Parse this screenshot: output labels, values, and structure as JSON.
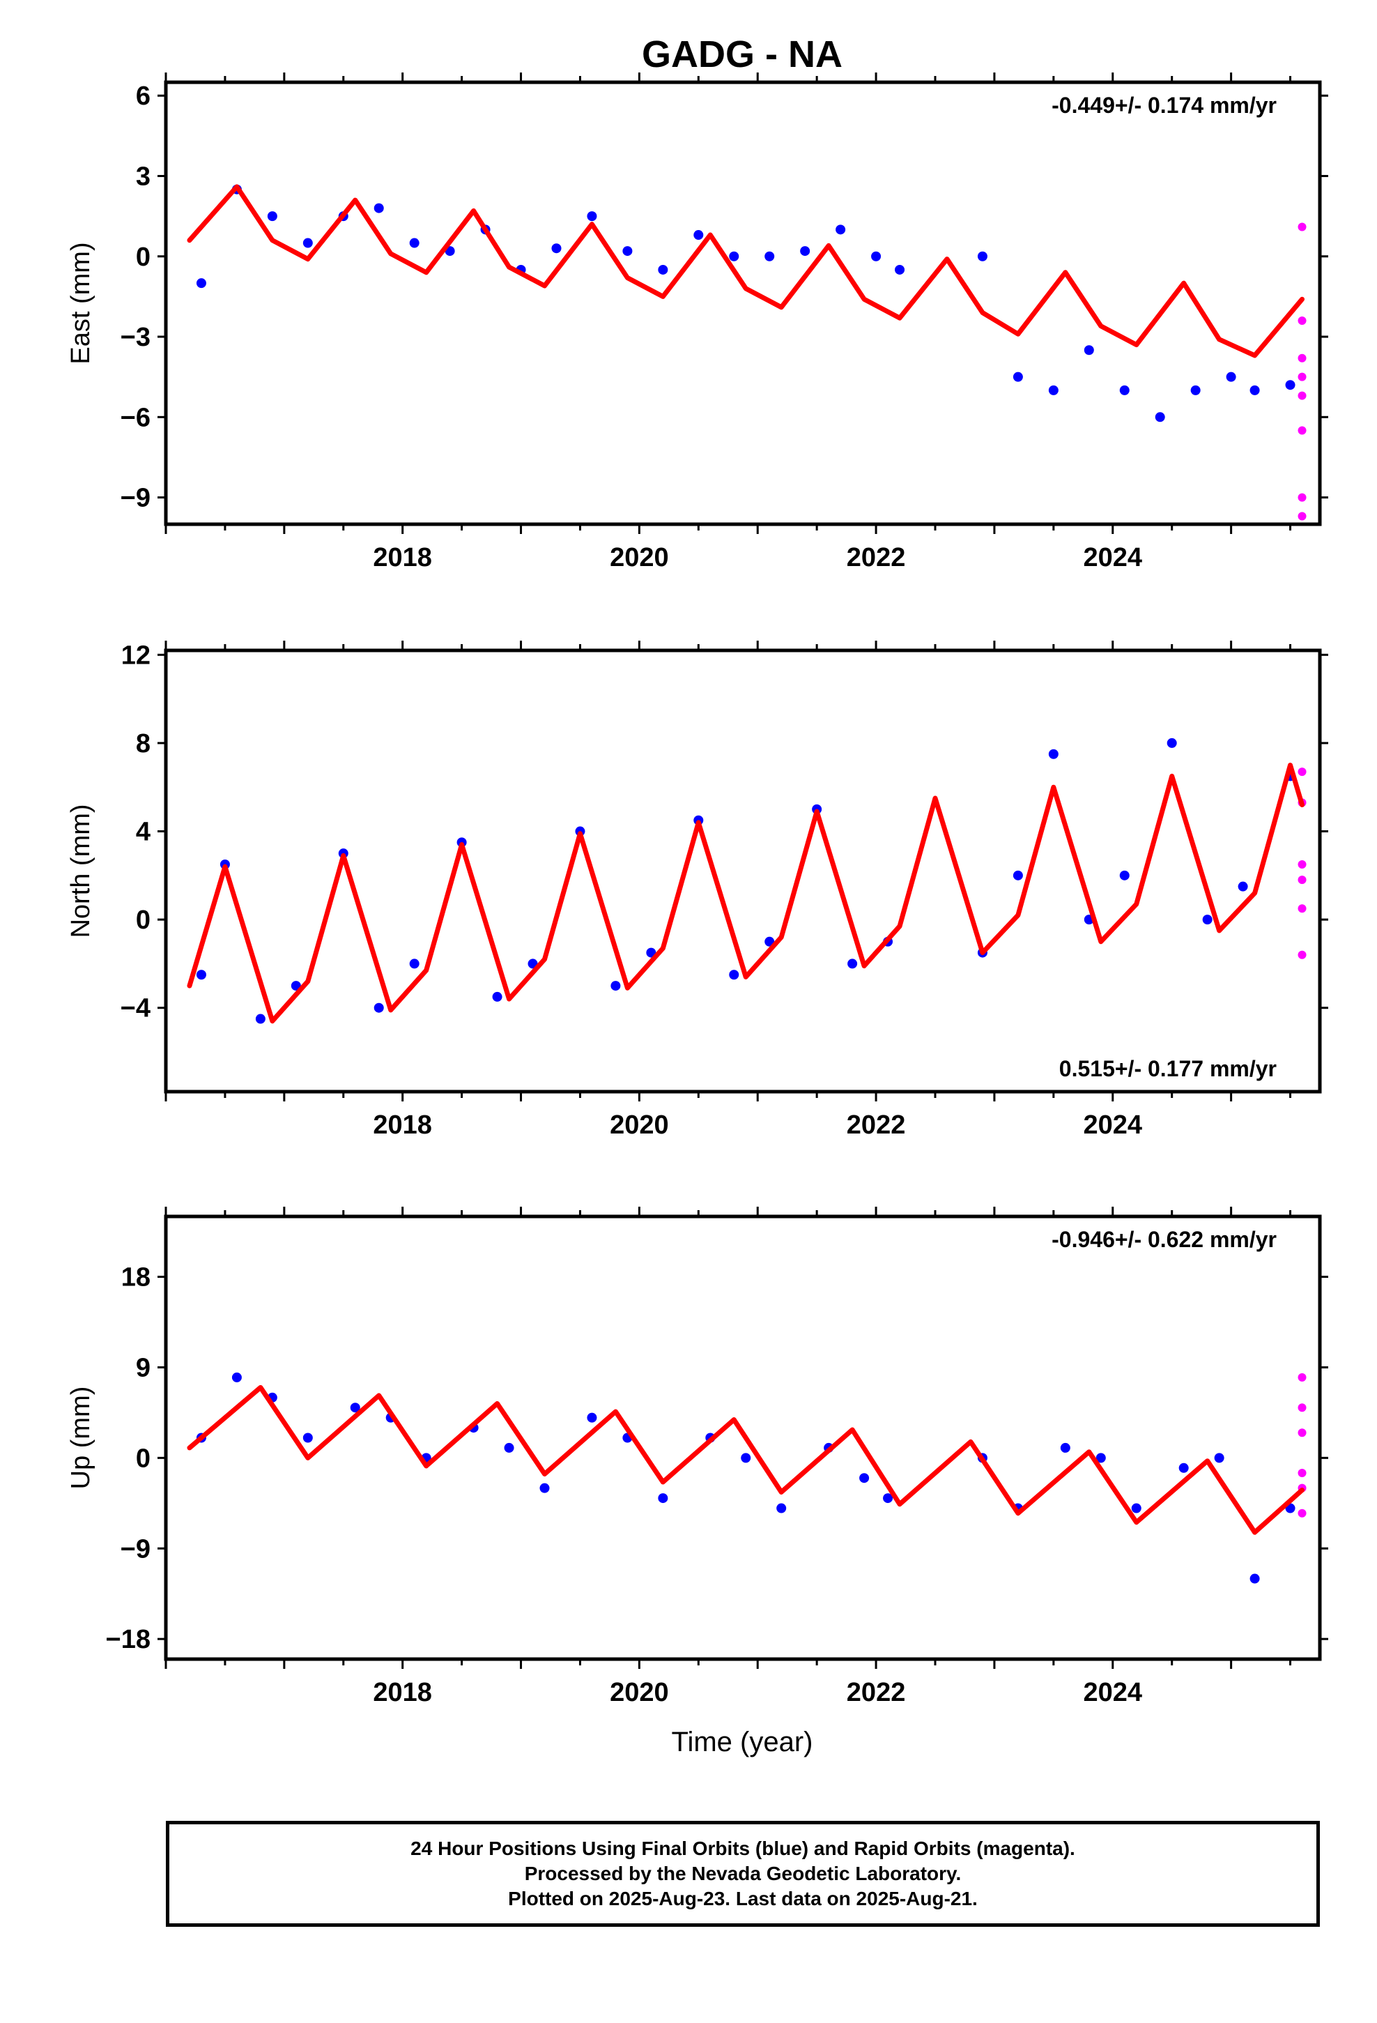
{
  "title": "GADG - NA",
  "xlabel": "Time (year)",
  "footer": {
    "line1": "24 Hour Positions Using Final Orbits (blue) and Rapid Orbits (magenta).",
    "line2": "Processed by the Nevada Geodetic Laboratory.",
    "line3": "Plotted on 2025-Aug-23. Last data on 2025-Aug-21."
  },
  "colors": {
    "final": "#0000ff",
    "rapid": "#ff00ff",
    "model": "#ff0000"
  },
  "chart_data": [
    {
      "type": "scatter",
      "ylabel": "East (mm)",
      "rate": "-0.449+/- 0.174 mm/yr",
      "rate_position": "top-right",
      "xlim": [
        2016.0,
        2025.75
      ],
      "ylim": [
        -10,
        6.5
      ],
      "yticks": [
        6,
        3,
        0,
        -3,
        -6,
        -9
      ],
      "xticks": [
        2018,
        2020,
        2022,
        2024
      ],
      "series": [
        {
          "key": "final",
          "x": [
            2016.3,
            2016.6,
            2016.9,
            2017.2,
            2017.5,
            2017.8,
            2018.1,
            2018.4,
            2018.7,
            2019.0,
            2019.3,
            2019.6,
            2019.9,
            2020.2,
            2020.5,
            2020.8,
            2021.1,
            2021.4,
            2021.7,
            2022.0,
            2022.2,
            2022.9,
            2023.2,
            2023.5,
            2023.8,
            2024.1,
            2024.4,
            2024.7,
            2025.0,
            2025.2,
            2025.5
          ],
          "y": [
            -1.0,
            2.5,
            1.5,
            0.5,
            1.5,
            1.8,
            0.5,
            0.2,
            1.0,
            -0.5,
            0.3,
            1.5,
            0.2,
            -0.5,
            0.8,
            0.0,
            0.0,
            0.2,
            1.0,
            0.0,
            -0.5,
            0.0,
            -4.5,
            -5.0,
            -3.5,
            -5.0,
            -6.0,
            -5.0,
            -4.5,
            -5.0,
            -4.8
          ]
        },
        {
          "key": "rapid",
          "x": [
            2025.6,
            2025.6,
            2025.6,
            2025.6,
            2025.6,
            2025.6,
            2025.6,
            2025.6
          ],
          "y": [
            1.1,
            -2.4,
            -3.8,
            -4.5,
            -5.2,
            -6.5,
            -9.0,
            -9.7
          ]
        },
        {
          "key": "model",
          "x": [
            2016.2,
            2016.6,
            2016.9,
            2017.2,
            2017.6,
            2017.9,
            2018.2,
            2018.6,
            2018.9,
            2019.2,
            2019.6,
            2019.9,
            2020.2,
            2020.6,
            2020.9,
            2021.2,
            2021.6,
            2021.9,
            2022.2,
            2022.6,
            2022.9,
            2023.2,
            2023.6,
            2023.9,
            2024.2,
            2024.6,
            2024.9,
            2025.2,
            2025.6
          ],
          "y": [
            0.6,
            2.6,
            0.6,
            -0.1,
            2.1,
            0.1,
            -0.6,
            1.7,
            -0.4,
            -1.1,
            1.2,
            -0.8,
            -1.5,
            0.8,
            -1.2,
            -1.9,
            0.4,
            -1.6,
            -2.3,
            -0.1,
            -2.1,
            -2.9,
            -0.6,
            -2.6,
            -3.3,
            -1.0,
            -3.1,
            -3.7,
            -1.6
          ]
        }
      ]
    },
    {
      "type": "scatter",
      "ylabel": "North (mm)",
      "rate": "0.515+/- 0.177 mm/yr",
      "rate_position": "bottom-right",
      "xlim": [
        2016.0,
        2025.75
      ],
      "ylim": [
        -7.8,
        12.2
      ],
      "yticks": [
        12,
        8,
        4,
        0,
        -4
      ],
      "xticks": [
        2018,
        2020,
        2022,
        2024
      ],
      "series": [
        {
          "key": "final",
          "x": [
            2016.3,
            2016.5,
            2016.8,
            2017.1,
            2017.5,
            2017.8,
            2018.1,
            2018.5,
            2018.8,
            2019.1,
            2019.5,
            2019.8,
            2020.1,
            2020.5,
            2020.8,
            2021.1,
            2021.5,
            2021.8,
            2022.1,
            2022.9,
            2023.2,
            2023.5,
            2023.8,
            2024.1,
            2024.5,
            2024.8,
            2025.1,
            2025.5
          ],
          "y": [
            -2.5,
            2.5,
            -4.5,
            -3.0,
            3.0,
            -4.0,
            -2.0,
            3.5,
            -3.5,
            -2.0,
            4.0,
            -3.0,
            -1.5,
            4.5,
            -2.5,
            -1.0,
            5.0,
            -2.0,
            -1.0,
            -1.5,
            2.0,
            7.5,
            0.0,
            2.0,
            8.0,
            0.0,
            1.5,
            6.5
          ]
        },
        {
          "key": "rapid",
          "x": [
            2025.6,
            2025.6,
            2025.6,
            2025.6,
            2025.6,
            2025.6
          ],
          "y": [
            6.7,
            5.3,
            2.5,
            1.8,
            0.5,
            -1.6
          ]
        },
        {
          "key": "model",
          "x": [
            2016.2,
            2016.5,
            2016.9,
            2017.2,
            2017.5,
            2017.9,
            2018.2,
            2018.5,
            2018.9,
            2019.2,
            2019.5,
            2019.9,
            2020.2,
            2020.5,
            2020.9,
            2021.2,
            2021.5,
            2021.9,
            2022.2,
            2022.5,
            2022.9,
            2023.2,
            2023.5,
            2023.9,
            2024.2,
            2024.5,
            2024.9,
            2025.2,
            2025.5,
            2025.6
          ],
          "y": [
            -3.0,
            2.4,
            -4.6,
            -2.8,
            2.9,
            -4.1,
            -2.3,
            3.4,
            -3.6,
            -1.8,
            3.9,
            -3.1,
            -1.3,
            4.4,
            -2.6,
            -0.8,
            4.9,
            -2.1,
            -0.3,
            5.5,
            -1.5,
            0.2,
            6.0,
            -1.0,
            0.7,
            6.5,
            -0.5,
            1.2,
            7.0,
            5.2
          ]
        }
      ]
    },
    {
      "type": "scatter",
      "ylabel": "Up (mm)",
      "rate": "-0.946+/- 0.622 mm/yr",
      "rate_position": "top-right",
      "xlim": [
        2016.0,
        2025.75
      ],
      "ylim": [
        -20,
        24
      ],
      "yticks": [
        18,
        9,
        0,
        -9,
        -18
      ],
      "xticks": [
        2018,
        2020,
        2022,
        2024
      ],
      "series": [
        {
          "key": "final",
          "x": [
            2016.3,
            2016.6,
            2016.9,
            2017.2,
            2017.6,
            2017.9,
            2018.2,
            2018.6,
            2018.9,
            2019.2,
            2019.6,
            2019.9,
            2020.2,
            2020.6,
            2020.9,
            2021.2,
            2021.6,
            2021.9,
            2022.1,
            2022.9,
            2023.2,
            2023.6,
            2023.9,
            2024.2,
            2024.6,
            2024.9,
            2025.2,
            2025.5
          ],
          "y": [
            2.0,
            8.0,
            6.0,
            2.0,
            5.0,
            4.0,
            0.0,
            3.0,
            1.0,
            -3.0,
            4.0,
            2.0,
            -4.0,
            2.0,
            0.0,
            -5.0,
            1.0,
            -2.0,
            -4.0,
            0.0,
            -5.0,
            1.0,
            0.0,
            -5.0,
            -1.0,
            0.0,
            -12.0,
            -5.0
          ]
        },
        {
          "key": "rapid",
          "x": [
            2025.6,
            2025.6,
            2025.6,
            2025.6,
            2025.6,
            2025.6
          ],
          "y": [
            8.0,
            5.0,
            2.5,
            -1.5,
            -3.0,
            -5.5
          ]
        },
        {
          "key": "model",
          "x": [
            2016.2,
            2016.8,
            2017.2,
            2017.8,
            2018.2,
            2018.8,
            2019.2,
            2019.8,
            2020.2,
            2020.8,
            2021.2,
            2021.8,
            2022.2,
            2022.8,
            2023.2,
            2023.8,
            2024.2,
            2024.8,
            2025.2,
            2025.6
          ],
          "y": [
            1.0,
            7.0,
            0.0,
            6.2,
            -0.8,
            5.4,
            -1.6,
            4.6,
            -2.4,
            3.8,
            -3.4,
            2.8,
            -4.6,
            1.6,
            -5.5,
            0.6,
            -6.4,
            -0.3,
            -7.4,
            -3.2
          ]
        }
      ]
    }
  ]
}
